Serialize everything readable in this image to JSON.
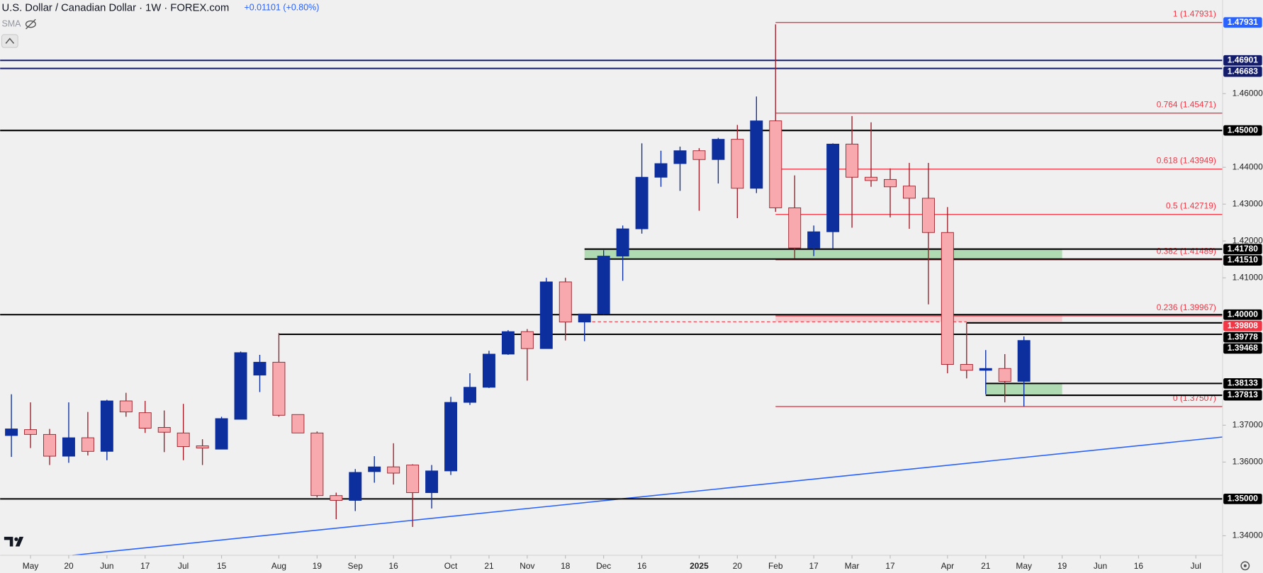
{
  "chart_data": {
    "type": "candlestick",
    "title": "U.S. Dollar / Canadian Dollar · 1W · FOREX.com",
    "change": "+0.01101 (+0.80%)",
    "indicator": "SMA",
    "up_color": "#0d2f9e",
    "down_color": "#f7a9ad",
    "down_edge_color": "#9e1f2a",
    "xlim": [
      -0.59,
      63.4
    ],
    "ylim": [
      1.3347,
      1.4854
    ],
    "open": [
      1.3672,
      1.3688,
      1.3675,
      1.3616,
      1.3666,
      1.3629,
      1.3766,
      1.3734,
      1.3694,
      1.3679,
      1.3644,
      1.3635,
      1.3716,
      1.3836,
      1.3871,
      1.3729,
      1.3679,
      1.3509,
      1.3496,
      1.3574,
      1.3587,
      1.3592,
      1.3517,
      1.3576,
      1.3762,
      1.3803,
      1.3893,
      1.3954,
      1.3908,
      1.4089,
      1.398,
      1.4002,
      1.4159,
      1.4233,
      1.4373,
      1.441,
      1.4445,
      1.4421,
      1.4476,
      1.4343,
      1.4526,
      1.429,
      1.4181,
      1.4225,
      1.4463,
      1.4373,
      1.4367,
      1.4349,
      1.4316,
      1.4223,
      1.3865,
      1.3849,
      1.3854,
      1.3819
    ],
    "high": [
      1.3784,
      1.3762,
      1.369,
      1.3762,
      1.3736,
      1.3769,
      1.3788,
      1.3766,
      1.374,
      1.3758,
      1.3662,
      1.3723,
      1.39,
      1.3891,
      1.395,
      1.3729,
      1.3683,
      1.3517,
      1.3581,
      1.3616,
      1.3651,
      1.3594,
      1.3592,
      1.3777,
      1.3841,
      1.3902,
      1.3958,
      1.3961,
      1.41,
      1.41,
      1.4,
      1.4175,
      1.4242,
      1.4465,
      1.4445,
      1.4456,
      1.4452,
      1.448,
      1.4515,
      1.4592,
      1.4788,
      1.4378,
      1.4242,
      1.4465,
      1.4539,
      1.4522,
      1.4397,
      1.4412,
      1.4412,
      1.4292,
      1.3978,
      1.3904,
      1.3893,
      1.3941
    ],
    "low": [
      1.3614,
      1.3638,
      1.3592,
      1.3598,
      1.3618,
      1.3605,
      1.3723,
      1.3679,
      1.3627,
      1.3605,
      1.3592,
      1.3635,
      1.3716,
      1.379,
      1.3723,
      1.3679,
      1.3504,
      1.3445,
      1.3467,
      1.3544,
      1.3539,
      1.3424,
      1.3474,
      1.3565,
      1.3755,
      1.3801,
      1.3891,
      1.3821,
      1.3908,
      1.393,
      1.3928,
      1.4,
      1.4092,
      1.422,
      1.4347,
      1.4336,
      1.4282,
      1.4356,
      1.4262,
      1.433,
      1.4279,
      1.4153,
      1.4159,
      1.4179,
      1.4236,
      1.4347,
      1.4264,
      1.4233,
      1.4028,
      1.3841,
      1.3827,
      1.3784,
      1.3762,
      1.3751
    ],
    "close": [
      1.369,
      1.3675,
      1.3616,
      1.3666,
      1.3629,
      1.3766,
      1.3736,
      1.3692,
      1.3681,
      1.3642,
      1.3638,
      1.3718,
      1.3897,
      1.3871,
      1.3727,
      1.3679,
      1.3509,
      1.3496,
      1.3572,
      1.3587,
      1.357,
      1.3517,
      1.3576,
      1.3762,
      1.3803,
      1.3893,
      1.3954,
      1.3908,
      1.4089,
      1.398,
      1.4002,
      1.4159,
      1.4233,
      1.4373,
      1.441,
      1.4445,
      1.4421,
      1.4476,
      1.4343,
      1.4526,
      1.429,
      1.4181,
      1.4225,
      1.4463,
      1.4373,
      1.4364,
      1.4347,
      1.4316,
      1.4223,
      1.3865,
      1.3849,
      1.3854,
      1.3819,
      1.393
    ],
    "xticks": [
      {
        "value": 1,
        "label": "May"
      },
      {
        "value": 3,
        "label": "20"
      },
      {
        "value": 5,
        "label": "Jun"
      },
      {
        "value": 7,
        "label": "17"
      },
      {
        "value": 9,
        "label": "Jul"
      },
      {
        "value": 11,
        "label": "15"
      },
      {
        "value": 14,
        "label": "Aug"
      },
      {
        "value": 16,
        "label": "19"
      },
      {
        "value": 18,
        "label": "Sep"
      },
      {
        "value": 20,
        "label": "16"
      },
      {
        "value": 23,
        "label": "Oct"
      },
      {
        "value": 25,
        "label": "21"
      },
      {
        "value": 27,
        "label": "Nov"
      },
      {
        "value": 29,
        "label": "18"
      },
      {
        "value": 31,
        "label": "Dec"
      },
      {
        "value": 33,
        "label": "16"
      },
      {
        "value": 36,
        "label": "2025"
      },
      {
        "value": 38,
        "label": "20"
      },
      {
        "value": 40,
        "label": "Feb"
      },
      {
        "value": 42,
        "label": "17"
      },
      {
        "value": 44,
        "label": "Mar"
      },
      {
        "value": 46,
        "label": "17"
      },
      {
        "value": 49,
        "label": "Apr"
      },
      {
        "value": 51,
        "label": "21"
      },
      {
        "value": 53,
        "label": "May"
      },
      {
        "value": 55,
        "label": "19"
      },
      {
        "value": 57,
        "label": "Jun"
      },
      {
        "value": 59,
        "label": "16"
      },
      {
        "value": 62,
        "label": "Jul"
      }
    ],
    "yticks": [
      {
        "value": 1.34,
        "label": "1.34000"
      },
      {
        "value": 1.36,
        "label": "1.36000"
      },
      {
        "value": 1.37,
        "label": "1.37000"
      },
      {
        "value": 1.41,
        "label": "1.41000"
      },
      {
        "value": 1.42,
        "label": "1.42000"
      },
      {
        "value": 1.43,
        "label": "1.43000"
      },
      {
        "value": 1.44,
        "label": "1.44000"
      },
      {
        "value": 1.46,
        "label": "1.46000"
      }
    ],
    "zones": [
      {
        "low": 1.4151,
        "high": 1.4178,
        "start": 30,
        "end": 55,
        "color": "#a5d6a7"
      },
      {
        "low": 1.39808,
        "high": 1.39967,
        "start": 40,
        "end": 55,
        "color": "#f8c4c8"
      },
      {
        "low": 1.37813,
        "high": 1.38133,
        "start": 51,
        "end": 55,
        "color": "#a5d6a7"
      }
    ],
    "levels": [
      {
        "value": 1.46901,
        "color": "#131c6b"
      },
      {
        "value": 1.46683,
        "color": "#131c6b"
      },
      {
        "value": 1.45,
        "color": "#000000"
      },
      {
        "value": 1.4178,
        "color": "#000000",
        "start": 30
      },
      {
        "value": 1.4151,
        "color": "#000000",
        "start": 30
      },
      {
        "value": 1.4,
        "color": "#000000"
      },
      {
        "value": 1.39808,
        "color": "#f23645",
        "start": 30.4,
        "end": 50,
        "dash": true
      },
      {
        "value": 1.39778,
        "color": "#000000",
        "start": 50
      },
      {
        "value": 1.39468,
        "color": "#000000",
        "start": 14
      },
      {
        "value": 1.38133,
        "color": "#000000",
        "start": 51
      },
      {
        "value": 1.37813,
        "color": "#000000",
        "start": 51
      },
      {
        "value": 1.35,
        "color": "#000000"
      }
    ],
    "fib": {
      "start": 40,
      "color": "#f23645",
      "levels": [
        {
          "value": 1.47931,
          "label": "1 (1.47931)"
        },
        {
          "value": 1.45471,
          "label": "0.764 (1.45471)"
        },
        {
          "value": 1.43949,
          "label": "0.618 (1.43949)"
        },
        {
          "value": 1.42719,
          "label": "0.5 (1.42719)"
        },
        {
          "value": 1.41489,
          "label": "0.382 (1.41489)"
        },
        {
          "value": 1.39967,
          "label": "0.236 (1.39967)"
        },
        {
          "value": 1.37507,
          "label": "0 (1.37507)"
        }
      ]
    },
    "trendline": {
      "x": [
        3.2,
        63.4
      ],
      "y": [
        1.3347,
        1.3668
      ],
      "color": "#2962ff"
    },
    "price_labels": [
      {
        "value": 1.47931,
        "label": "1.47931",
        "bg": "#2962ff"
      },
      {
        "value": 1.46901,
        "label": "1.46901",
        "bg": "#131c6b"
      },
      {
        "value": 1.46683,
        "label": "1.46683",
        "bg": "#131c6b"
      },
      {
        "value": 1.45,
        "label": "1.45000",
        "bg": "#000000"
      },
      {
        "value": 1.4178,
        "label": "1.41780",
        "bg": "#000000"
      },
      {
        "value": 1.4151,
        "label": "1.41510",
        "bg": "#000000"
      },
      {
        "value": 1.4,
        "label": "1.40000",
        "bg": "#000000"
      },
      {
        "value": 1.39808,
        "label": "1.39808",
        "bg": "#f23645"
      },
      {
        "value": 1.39778,
        "label": "1.39778",
        "bg": "#000000"
      },
      {
        "value": 1.39468,
        "label": "1.39468",
        "bg": "#000000"
      },
      {
        "value": 1.38133,
        "label": "1.38133",
        "bg": "#000000"
      },
      {
        "value": 1.37813,
        "label": "1.37813",
        "bg": "#000000"
      },
      {
        "value": 1.35,
        "label": "1.35000",
        "bg": "#000000"
      }
    ]
  }
}
